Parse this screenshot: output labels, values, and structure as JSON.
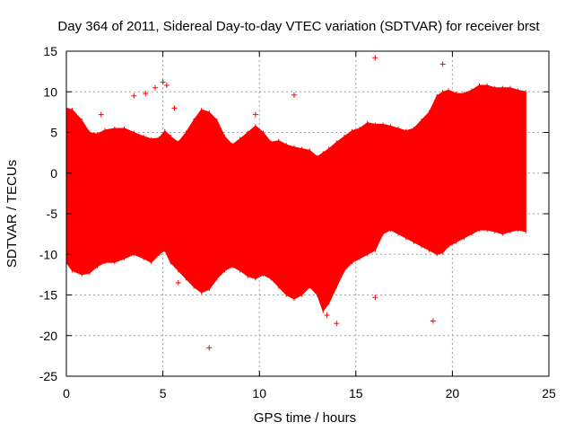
{
  "chart_data": {
    "type": "scatter",
    "title": "Day 364 of 2011, Sidereal Day-to-day VTEC variation (SDTVAR) for receiver brst",
    "xlabel": "GPS time / hours",
    "ylabel": "SDTVAR / TECUs",
    "xlim": [
      0,
      25
    ],
    "ylim": [
      -25,
      15
    ],
    "xticks": [
      "0",
      "5",
      "10",
      "15",
      "20",
      "25"
    ],
    "yticks": [
      "15",
      "10",
      "5",
      "0",
      "-5",
      "-10",
      "-15",
      "-20",
      "-25"
    ],
    "grid": true,
    "color": "#ff0000",
    "series": [
      {
        "name": "SDTVAR envelope",
        "x": [
          0,
          0.3,
          0.8,
          1.2,
          1.6,
          2.0,
          2.5,
          3.0,
          3.5,
          4.0,
          4.4,
          4.8,
          5.1,
          5.4,
          5.8,
          6.2,
          6.6,
          7.0,
          7.4,
          7.8,
          8.2,
          8.6,
          9.0,
          9.4,
          9.8,
          10.2,
          10.6,
          11.0,
          11.4,
          11.8,
          12.2,
          12.6,
          13.0,
          13.3,
          13.6,
          14.0,
          14.4,
          14.8,
          15.2,
          15.6,
          16.0,
          16.4,
          16.8,
          17.2,
          17.6,
          18.0,
          18.4,
          18.8,
          19.2,
          19.5,
          19.8,
          20.2,
          20.6,
          21.0,
          21.4,
          21.8,
          22.2,
          22.6,
          23.0,
          23.4,
          23.8
        ],
        "upper": [
          8.0,
          7.8,
          6.5,
          5.0,
          4.8,
          5.3,
          5.5,
          5.5,
          5.0,
          4.5,
          4.2,
          4.3,
          5.2,
          4.5,
          3.8,
          5.0,
          6.5,
          7.8,
          7.5,
          6.5,
          4.5,
          3.5,
          4.2,
          5.0,
          5.8,
          5.0,
          3.8,
          4.0,
          3.5,
          3.2,
          3.0,
          2.8,
          2.0,
          2.5,
          3.0,
          3.8,
          4.5,
          5.2,
          5.5,
          6.2,
          6.0,
          6.0,
          5.8,
          5.5,
          5.2,
          5.5,
          6.5,
          7.5,
          9.5,
          10.0,
          10.2,
          9.8,
          9.8,
          10.2,
          10.8,
          10.8,
          10.5,
          10.5,
          10.5,
          10.2,
          10.0
        ],
        "lower": [
          -11.0,
          -12.0,
          -12.5,
          -12.3,
          -11.5,
          -11.0,
          -11.0,
          -10.5,
          -10.0,
          -10.5,
          -11.0,
          -10.0,
          -9.5,
          -11.0,
          -12.0,
          -13.0,
          -14.0,
          -14.7,
          -14.3,
          -13.0,
          -12.0,
          -11.5,
          -12.0,
          -12.7,
          -13.0,
          -12.5,
          -13.0,
          -14.0,
          -15.0,
          -15.5,
          -15.0,
          -14.0,
          -15.0,
          -17.0,
          -16.0,
          -14.0,
          -12.0,
          -11.0,
          -10.5,
          -10.0,
          -9.5,
          -7.5,
          -7.0,
          -7.5,
          -8.0,
          -8.5,
          -9.0,
          -9.5,
          -10.0,
          -9.8,
          -9.0,
          -8.5,
          -8.0,
          -7.5,
          -7.0,
          -7.0,
          -7.2,
          -7.5,
          -7.2,
          -7.0,
          -7.2
        ]
      },
      {
        "name": "outliers",
        "x": [
          1.8,
          3.5,
          4.1,
          4.6,
          5.0,
          5.2,
          5.6,
          5.8,
          7.4,
          9.8,
          11.8,
          14.0,
          16.0,
          16.0,
          19.0,
          19.5,
          7.3,
          13.5
        ],
        "y": [
          7.2,
          9.5,
          9.8,
          10.5,
          11.2,
          10.8,
          8.0,
          -13.5,
          -21.5,
          7.2,
          9.6,
          -18.5,
          14.2,
          -15.3,
          -18.2,
          13.4,
          -14.0,
          -17.5
        ]
      }
    ]
  }
}
